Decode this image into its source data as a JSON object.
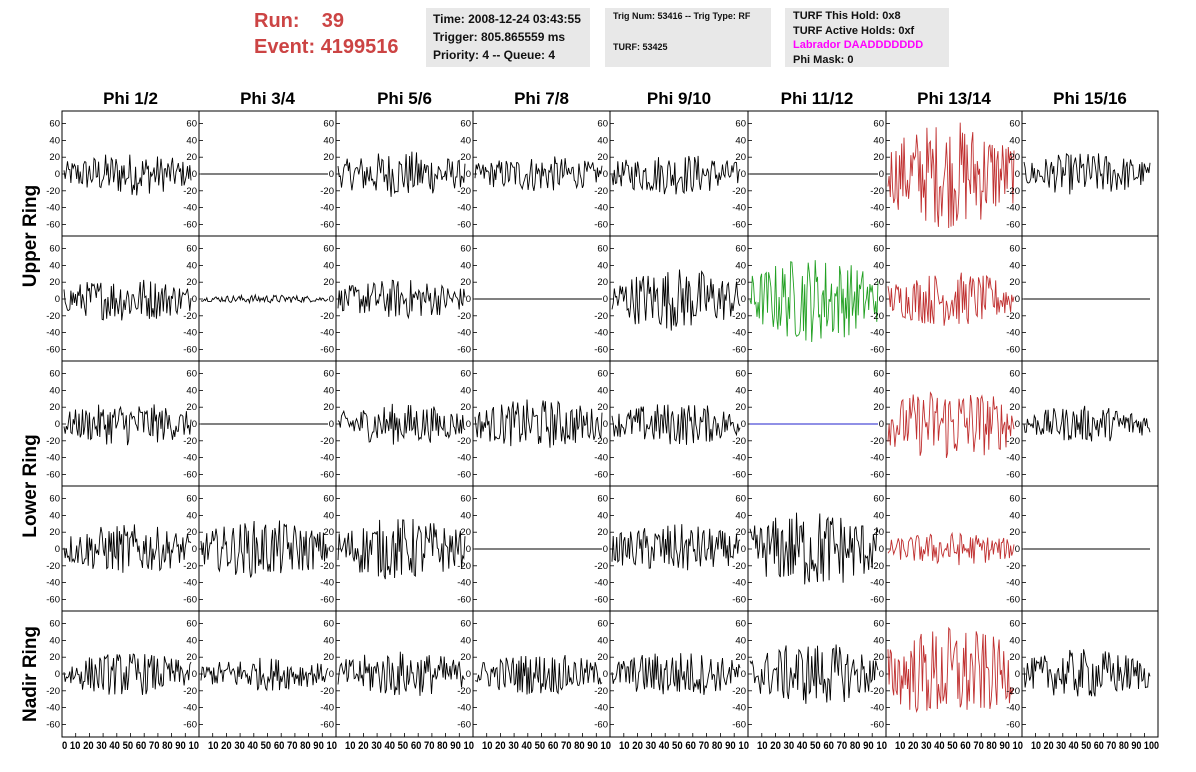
{
  "header": {
    "run_label": "Run:",
    "run_value": "39",
    "event_label": "Event:",
    "event_value": "4199516",
    "time": "Time: 2008-12-24 03:43:55",
    "trigger": "Trigger: 805.865559 ms",
    "priority": "Priority: 4 -- Queue: 4",
    "trig_num": "Trig Num: 53416 -- Trig Type: RF",
    "turf": "TURF: 53425",
    "turf_this_hold": "TURF This Hold: 0x8",
    "turf_active_holds": "TURF Active Holds: 0xf",
    "labrador": "Labrador DAADDDDDDD",
    "phi_mask": "Phi Mask: 0"
  },
  "colors": {
    "run_text": "#cc4444",
    "labrador_text": "#ff00ff",
    "trace_default": "#000000",
    "trace_red": "#c03030",
    "trace_green": "#22a022",
    "trace_blue": "#2222cc",
    "info_bg": "#e8e8e8"
  },
  "chart_data": {
    "type": "line",
    "columns": [
      "Phi 1/2",
      "Phi 3/4",
      "Phi 5/6",
      "Phi 7/8",
      "Phi 9/10",
      "Phi 11/12",
      "Phi 13/14",
      "Phi 15/16"
    ],
    "ring_labels": [
      "Upper Ring",
      "Lower Ring",
      "Nadir Ring"
    ],
    "x_ticks": [
      0,
      10,
      20,
      30,
      40,
      50,
      60,
      70,
      80,
      90,
      100
    ],
    "x_tick_labels_first": "0 10 20 30 40 50 60 70 80 90 10",
    "x_tick_labels": "10 20 30 40 50 60 70 80 90 10",
    "x_tick_labels_last": "10 20 30 40 50 60 70 80 90 100",
    "xlim": [
      0,
      100
    ],
    "y_ticks": [
      -60,
      -40,
      -20,
      0,
      20,
      40,
      60
    ],
    "ylim": [
      -72,
      72
    ],
    "panel_rows": [
      {
        "ring": "Upper Ring",
        "amps": [
          26,
          0,
          28,
          22,
          25,
          0,
          65,
          26
        ],
        "colors": [
          "black",
          "black",
          "black",
          "black",
          "black",
          "black",
          "red",
          "black"
        ]
      },
      {
        "ring": "Upper Ring",
        "amps": [
          27,
          5,
          24,
          0,
          38,
          52,
          33,
          0
        ],
        "colors": [
          "black",
          "black",
          "black",
          "black",
          "black",
          "green",
          "red",
          "black"
        ]
      },
      {
        "ring": "Lower Ring",
        "amps": [
          26,
          0,
          25,
          30,
          26,
          0,
          45,
          22
        ],
        "colors": [
          "black",
          "black",
          "black",
          "black",
          "black",
          "blue",
          "red",
          "black"
        ]
      },
      {
        "ring": "Lower Ring",
        "amps": [
          30,
          35,
          38,
          0,
          30,
          48,
          20,
          0
        ],
        "colors": [
          "black",
          "black",
          "black",
          "black",
          "black",
          "black",
          "red",
          "black"
        ]
      },
      {
        "ring": "Nadir Ring",
        "amps": [
          26,
          20,
          28,
          25,
          28,
          38,
          58,
          30
        ],
        "colors": [
          "black",
          "black",
          "black",
          "black",
          "black",
          "black",
          "red",
          "black"
        ]
      }
    ]
  }
}
